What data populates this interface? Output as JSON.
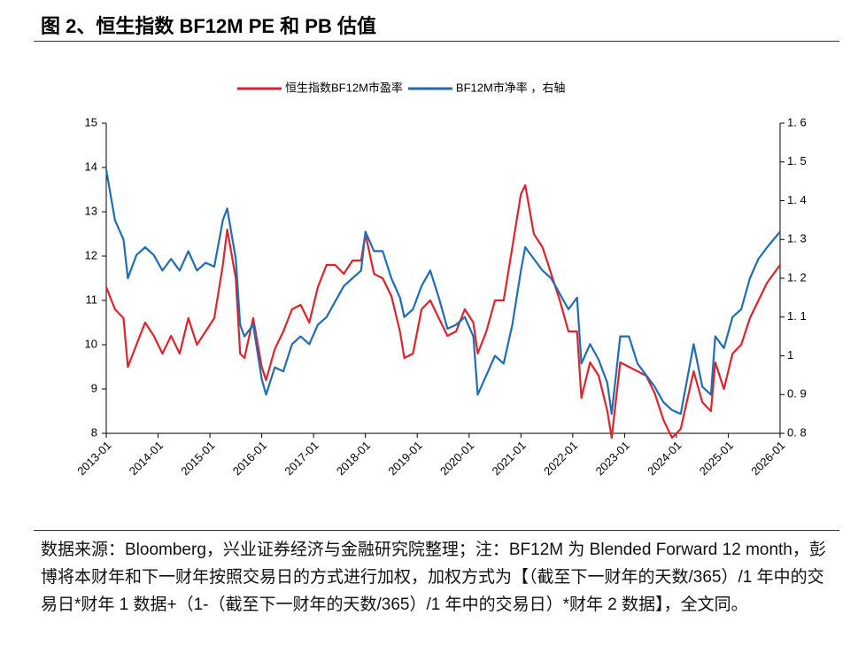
{
  "chart_data": {
    "type": "line",
    "title": "图 2、恒生指数 BF12M PE 和 PB 估值",
    "note": "数据来源：Bloomberg，兴业证券经济与金融研究院整理；注：BF12M 为 Blended Forward 12 month，彭博将本财年和下一财年按照交易日的方式进行加权，加权方式为【（截至下一财年的天数/365）/1 年中的交易日*财年 1 数据+（1-（截至下一财年的天数/365）/1 年中的交易日）*财年 2 数据】，全文同。",
    "x": [
      "2013-01",
      "2013-03",
      "2013-05",
      "2013-06",
      "2013-08",
      "2013-10",
      "2013-12",
      "2014-02",
      "2014-04",
      "2014-06",
      "2014-08",
      "2014-10",
      "2014-12",
      "2015-02",
      "2015-04",
      "2015-05",
      "2015-07",
      "2015-08",
      "2015-09",
      "2015-11",
      "2016-01",
      "2016-02",
      "2016-04",
      "2016-06",
      "2016-08",
      "2016-10",
      "2016-12",
      "2017-02",
      "2017-04",
      "2017-06",
      "2017-08",
      "2017-10",
      "2017-12",
      "2018-01",
      "2018-03",
      "2018-05",
      "2018-07",
      "2018-09",
      "2018-10",
      "2018-12",
      "2019-02",
      "2019-04",
      "2019-06",
      "2019-08",
      "2019-10",
      "2019-12",
      "2020-02",
      "2020-03",
      "2020-05",
      "2020-07",
      "2020-09",
      "2020-11",
      "2021-01",
      "2021-02",
      "2021-04",
      "2021-06",
      "2021-08",
      "2021-10",
      "2021-12",
      "2022-02",
      "2022-03",
      "2022-05",
      "2022-07",
      "2022-09",
      "2022-10",
      "2022-12",
      "2023-02",
      "2023-04",
      "2023-06",
      "2023-08",
      "2023-10",
      "2023-12",
      "2024-02",
      "2024-05",
      "2024-07",
      "2024-09",
      "2024-10",
      "2024-12",
      "2025-02",
      "2025-04",
      "2025-06",
      "2025-08",
      "2025-10",
      "2026-01"
    ],
    "series": [
      {
        "name": "恒生指数BF12M市盈率",
        "color": "#e0232a",
        "values": [
          11.3,
          10.8,
          10.6,
          9.5,
          10.0,
          10.5,
          10.2,
          9.8,
          10.2,
          9.8,
          10.6,
          10.0,
          10.3,
          10.6,
          11.8,
          12.6,
          11.5,
          9.8,
          9.7,
          10.6,
          9.5,
          9.2,
          9.9,
          10.3,
          10.8,
          10.9,
          10.5,
          11.3,
          11.8,
          11.8,
          11.6,
          11.9,
          11.9,
          12.5,
          11.6,
          11.5,
          11.1,
          10.3,
          9.7,
          9.8,
          10.8,
          11.0,
          10.6,
          10.2,
          10.3,
          10.8,
          10.5,
          9.8,
          10.3,
          11.0,
          11.0,
          12.2,
          13.4,
          13.6,
          12.5,
          12.2,
          11.6,
          11.0,
          10.3,
          10.3,
          8.8,
          9.6,
          9.3,
          8.5,
          7.9,
          9.6,
          9.5,
          9.4,
          9.3,
          8.9,
          8.3,
          7.9,
          8.1,
          9.4,
          8.7,
          8.5,
          9.6,
          9.0,
          9.8,
          10.0,
          10.6,
          11.0,
          11.4,
          11.8
        ]
      },
      {
        "name": "BF12M市净率 ，右轴",
        "color": "#1f6db5",
        "axis": "y2",
        "values": [
          1.48,
          1.35,
          1.3,
          1.2,
          1.26,
          1.28,
          1.26,
          1.22,
          1.25,
          1.22,
          1.27,
          1.22,
          1.24,
          1.23,
          1.35,
          1.38,
          1.25,
          1.08,
          1.05,
          1.08,
          0.94,
          0.9,
          0.97,
          0.96,
          1.03,
          1.05,
          1.03,
          1.08,
          1.1,
          1.14,
          1.18,
          1.2,
          1.22,
          1.32,
          1.27,
          1.27,
          1.2,
          1.15,
          1.1,
          1.12,
          1.18,
          1.22,
          1.15,
          1.07,
          1.08,
          1.1,
          1.05,
          0.9,
          0.95,
          1.0,
          0.98,
          1.08,
          1.22,
          1.28,
          1.25,
          1.22,
          1.2,
          1.16,
          1.12,
          1.15,
          0.98,
          1.03,
          0.99,
          0.93,
          0.85,
          1.05,
          1.05,
          0.98,
          0.95,
          0.92,
          0.88,
          0.86,
          0.85,
          1.03,
          0.92,
          0.9,
          1.05,
          1.02,
          1.1,
          1.12,
          1.2,
          1.25,
          1.28,
          1.32
        ]
      }
    ],
    "xticks": [
      "2013-01",
      "2014-01",
      "2015-01",
      "2016-01",
      "2017-01",
      "2018-01",
      "2019-01",
      "2020-01",
      "2021-01",
      "2022-01",
      "2023-01",
      "2024-01",
      "2025-01",
      "2026-01"
    ],
    "ylim": [
      8,
      15
    ],
    "yticks": [
      8,
      9,
      10,
      11,
      12,
      13,
      14,
      15
    ],
    "y2lim": [
      0.8,
      1.6
    ],
    "y2ticks": [
      {
        "value": 0.8,
        "label": "0. 8"
      },
      {
        "value": 0.9,
        "label": "0. 9"
      },
      1,
      {
        "value": 1.1,
        "label": "1. 1"
      },
      {
        "value": 1.2,
        "label": "1. 2"
      },
      {
        "value": 1.3,
        "label": "1. 3"
      },
      {
        "value": 1.4,
        "label": "1. 4"
      },
      {
        "value": 1.5,
        "label": "1. 5"
      },
      {
        "value": 1.6,
        "label": "1. 6"
      }
    ],
    "legend": "top"
  }
}
